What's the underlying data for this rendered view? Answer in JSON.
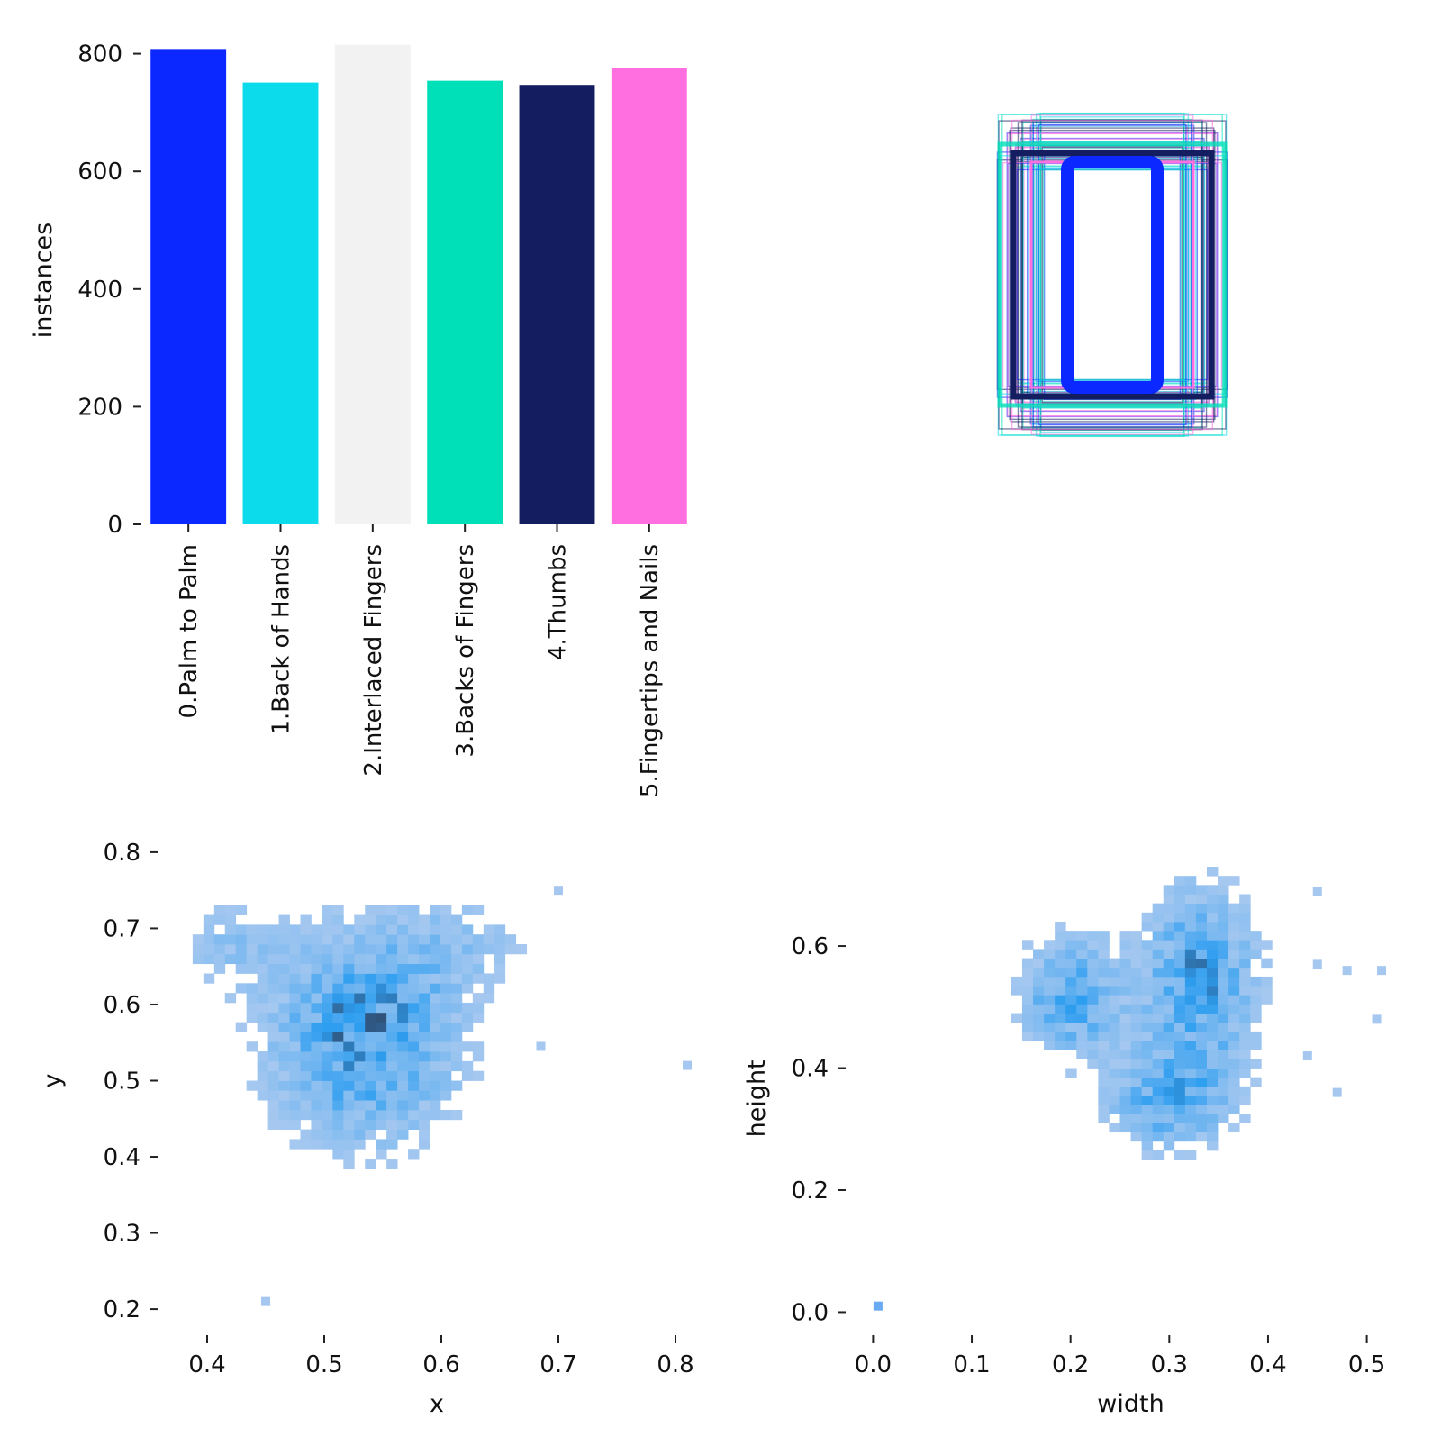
{
  "chart_data": [
    {
      "panel": "top-left",
      "type": "bar",
      "ylabel": "instances",
      "ylim": [
        0,
        830
      ],
      "yticks": [
        0,
        200,
        400,
        600,
        800
      ],
      "grid": false,
      "categories": [
        "0.Palm to Palm",
        "1.Back of Hands",
        "2.Interlaced Fingers",
        "3.Backs of Fingers",
        "4.Thumbs",
        "5.Fingertips and Nails"
      ],
      "values": [
        808,
        751,
        815,
        754,
        747,
        775
      ],
      "colors": [
        "#0a28ff",
        "#0bdbeb",
        "#f2f2f2",
        "#00e0b8",
        "#141d5f",
        "#ff6fe0"
      ]
    },
    {
      "panel": "top-right",
      "type": "box-overlay",
      "axes_visible": false,
      "note_colors": [
        "#0a28ff",
        "#0bdbeb",
        "#00e0b8",
        "#141d5f",
        "#ff6fe0"
      ]
    },
    {
      "panel": "bottom-left",
      "type": "heatmap",
      "xlabel": "x",
      "ylabel": "y",
      "xlim": [
        0.36,
        0.82
      ],
      "ylim": [
        0.18,
        0.82
      ],
      "xticks": [
        "0.4",
        "0.5",
        "0.6",
        "0.7",
        "0.8"
      ],
      "yticks": [
        "0.2",
        "0.3",
        "0.4",
        "0.5",
        "0.6",
        "0.7",
        "0.8"
      ],
      "color_low": "#a6c8f0",
      "color_mid": "#2e9ef0",
      "color_high": "#2f4a6e",
      "clusters": [
        {
          "cx": 0.535,
          "cy": 0.56,
          "sx": 0.055,
          "sy": 0.095,
          "w": 1.0
        },
        {
          "cx": 0.42,
          "cy": 0.68,
          "sx": 0.03,
          "sy": 0.04,
          "w": 0.35
        },
        {
          "cx": 0.62,
          "cy": 0.68,
          "sx": 0.04,
          "sy": 0.04,
          "w": 0.3
        }
      ],
      "outliers": [
        [
          0.45,
          0.21
        ],
        [
          0.81,
          0.52
        ],
        [
          0.7,
          0.75
        ],
        [
          0.685,
          0.545
        ]
      ]
    },
    {
      "panel": "bottom-right",
      "type": "heatmap",
      "xlabel": "width",
      "ylabel": "height",
      "xlim": [
        -0.025,
        0.525
      ],
      "ylim": [
        -0.02,
        0.73
      ],
      "xticks": [
        "0.0",
        "0.1",
        "0.2",
        "0.3",
        "0.4",
        "0.5"
      ],
      "yticks": [
        "0.0",
        "0.2",
        "0.4",
        "0.6"
      ],
      "color_low": "#a6c8f0",
      "color_mid": "#2e9ef0",
      "color_high": "#2f4a6e",
      "clusters": [
        {
          "cx": 0.2,
          "cy": 0.52,
          "sx": 0.035,
          "sy": 0.07,
          "w": 0.8
        },
        {
          "cx": 0.33,
          "cy": 0.55,
          "sx": 0.04,
          "sy": 0.1,
          "w": 0.9
        },
        {
          "cx": 0.3,
          "cy": 0.35,
          "sx": 0.045,
          "sy": 0.06,
          "w": 0.75
        }
      ],
      "outliers": [
        [
          0.005,
          0.01
        ],
        [
          0.45,
          0.69
        ],
        [
          0.47,
          0.36
        ],
        [
          0.51,
          0.48
        ],
        [
          0.515,
          0.56
        ],
        [
          0.48,
          0.56
        ],
        [
          0.45,
          0.57
        ],
        [
          0.44,
          0.42
        ]
      ]
    }
  ]
}
